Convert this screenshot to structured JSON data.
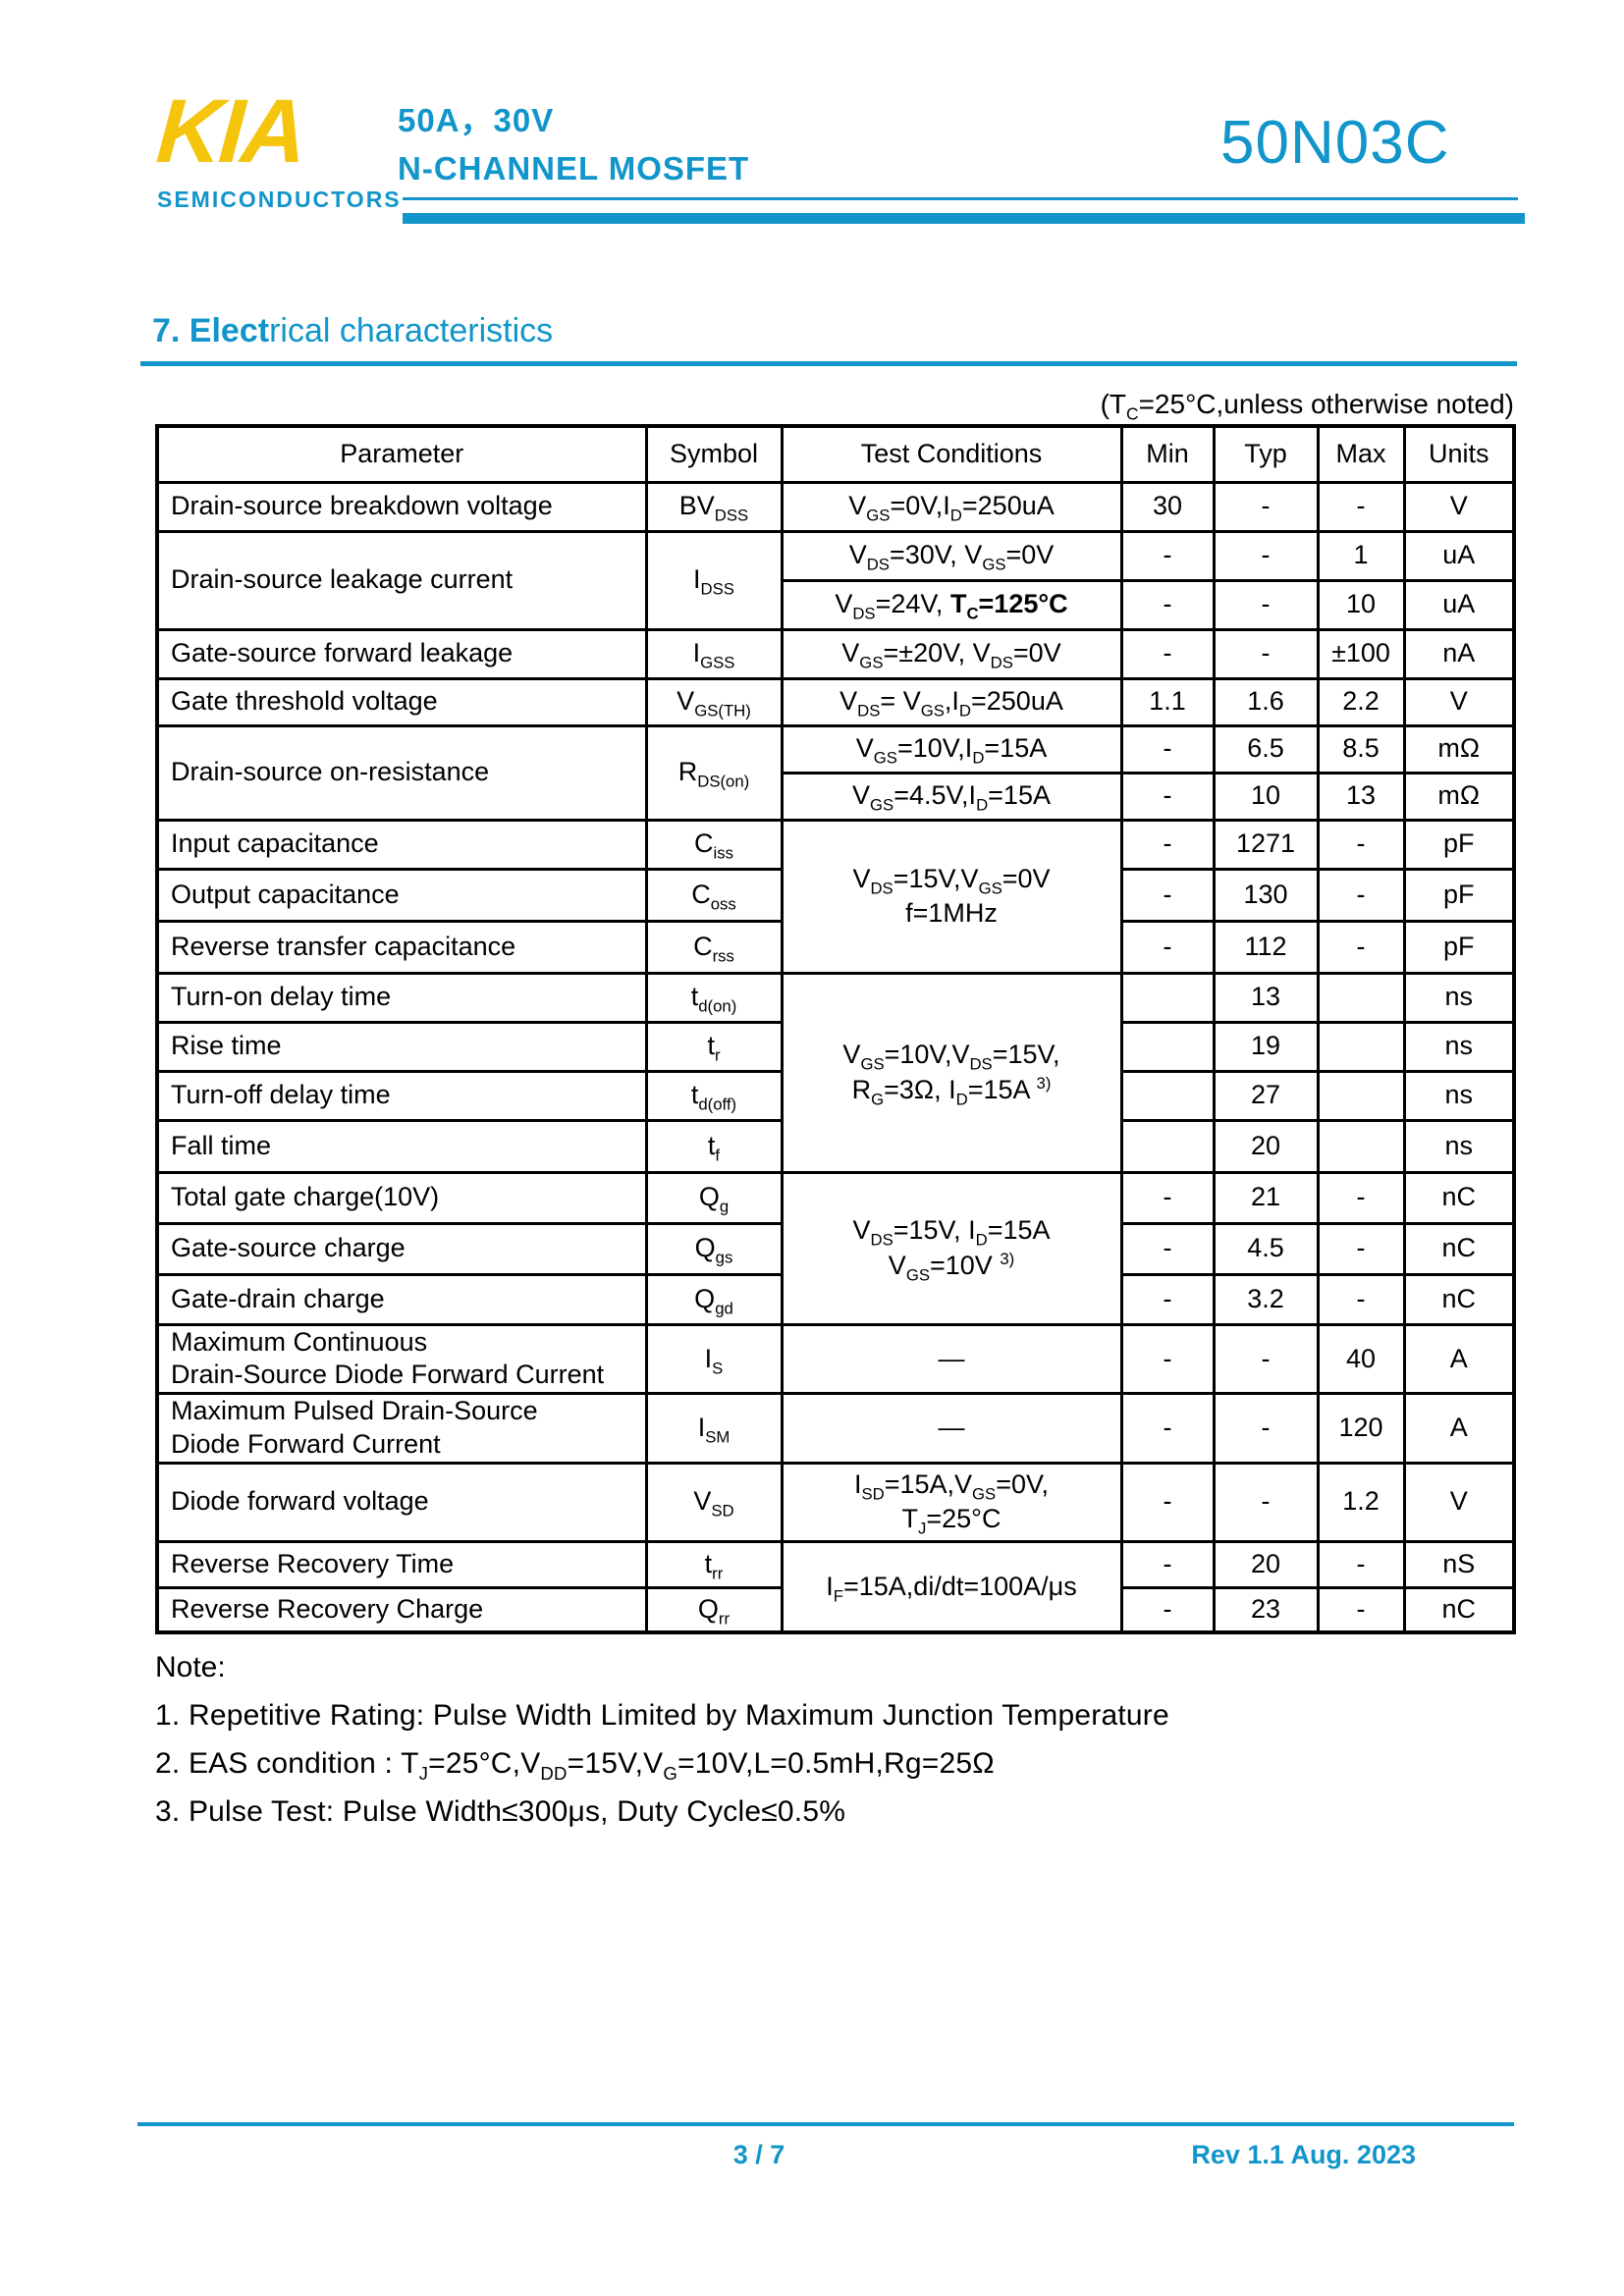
{
  "colors": {
    "accent_blue": "#1195ca",
    "logo_yellow": "#f5c40c",
    "text_black": "#000000"
  },
  "header": {
    "logo": "KIA",
    "logo_caption": "SEMICONDUCTORS",
    "rating_line": "50A，30V",
    "type_line": "N-CHANNEL MOSFET",
    "part_number": "50N03C"
  },
  "section": {
    "title_bold": "7. Elect",
    "title_rest": "rical characteristics",
    "condition_note": "(T~C~=25°C,unless otherwise noted)"
  },
  "table": {
    "headers": [
      "Parameter",
      "Symbol",
      "Test Conditions",
      "Min",
      "Typ",
      "Max",
      "Units"
    ],
    "rows": [
      {
        "param": "Drain-source breakdown voltage",
        "symbol": "BV~DSS~",
        "cond": "V~GS~=0V,I~D~=250uA",
        "min": "30",
        "typ": "-",
        "max": "-",
        "units": "V"
      },
      {
        "param": "Drain-source leakage current",
        "symbol": "I~DSS~",
        "cond": "V~DS~=30V, V~GS~=0V",
        "min": "-",
        "typ": "-",
        "max": "1",
        "units": "uA"
      },
      {
        "cond": "V~DS~=24V, *T~C~=125°C*",
        "min": "-",
        "typ": "-",
        "max": "10",
        "units": "uA"
      },
      {
        "param": "Gate-source forward leakage",
        "symbol": "I~GSS~",
        "cond": "V~GS~=±20V, V~DS~=0V",
        "min": "-",
        "typ": "-",
        "max": "±100",
        "units": "nA"
      },
      {
        "param": "Gate threshold voltage",
        "symbol": "V~GS(TH)~",
        "cond": "V~DS~= V~GS~,I~D~=250uA",
        "min": "1.1",
        "typ": "1.6",
        "max": "2.2",
        "units": "V"
      },
      {
        "param": "Drain-source on-resistance",
        "symbol": "R~DS(on)~",
        "cond": "V~GS~=10V,I~D~=15A",
        "min": "-",
        "typ": "6.5",
        "max": "8.5",
        "units": "mΩ"
      },
      {
        "cond": "V~GS~=4.5V,I~D~=15A",
        "min": "-",
        "typ": "10",
        "max": "13",
        "units": "mΩ"
      },
      {
        "param": "Input capacitance",
        "symbol": "C~iss~",
        "cond": "V~DS~=15V,V~GS~=0V\nf=1MHz",
        "min": "-",
        "typ": "1271",
        "max": "-",
        "units": "pF"
      },
      {
        "param": "Output capacitance",
        "symbol": "C~oss~",
        "min": "-",
        "typ": "130",
        "max": "-",
        "units": "pF"
      },
      {
        "param": "Reverse transfer capacitance",
        "symbol": "C~rss~",
        "min": "-",
        "typ": "112",
        "max": "-",
        "units": "pF"
      },
      {
        "param": "Turn-on delay time",
        "symbol": "t~d(on)~",
        "cond": "V~GS~=10V,V~DS~=15V,\nR~G~=3Ω, I~D~=15A ^3)^",
        "min": "",
        "typ": "13",
        "max": "",
        "units": "ns"
      },
      {
        "param": "Rise time",
        "symbol": "t~r~",
        "min": "",
        "typ": "19",
        "max": "",
        "units": "ns"
      },
      {
        "param": "Turn-off delay time",
        "symbol": "t~d(off)~",
        "min": "",
        "typ": "27",
        "max": "",
        "units": "ns"
      },
      {
        "param": "Fall time",
        "symbol": "t~f~",
        "min": "",
        "typ": "20",
        "max": "",
        "units": "ns"
      },
      {
        "param": "Total gate charge(10V)",
        "symbol": "Q~g~",
        "cond": "V~DS~=15V, I~D~=15A\nV~GS~=10V ^3)^",
        "min": "-",
        "typ": "21",
        "max": "-",
        "units": "nC"
      },
      {
        "param": "Gate-source charge",
        "symbol": "Q~gs~",
        "min": "-",
        "typ": "4.5",
        "max": "-",
        "units": "nC"
      },
      {
        "param": "Gate-drain charge",
        "symbol": "Q~gd~",
        "min": "-",
        "typ": "3.2",
        "max": "-",
        "units": "nC"
      },
      {
        "param": "Maximum Continuous\nDrain-Source Diode Forward Current",
        "symbol": "I~S~",
        "cond": "—",
        "min": "-",
        "typ": "-",
        "max": "40",
        "units": "A"
      },
      {
        "param": "Maximum Pulsed Drain-Source\nDiode Forward Current",
        "symbol": "I~SM~",
        "cond": "—",
        "min": "-",
        "typ": "-",
        "max": "120",
        "units": "A"
      },
      {
        "param": "Diode forward voltage",
        "symbol": "V~SD~",
        "cond": "I~SD~=15A,V~GS~=0V,\nT~J~=25°C",
        "min": "-",
        "typ": "-",
        "max": "1.2",
        "units": "V"
      },
      {
        "param": "Reverse Recovery Time",
        "symbol": "t~rr~",
        "cond": "I~F~=15A,di/dt=100A/μs",
        "min": "-",
        "typ": "20",
        "max": "-",
        "units": "nS"
      },
      {
        "param": "Reverse Recovery Charge",
        "symbol": "Q~rr~",
        "min": "-",
        "typ": "23",
        "max": "-",
        "units": "nC"
      }
    ]
  },
  "notes": {
    "label": "Note:",
    "items": [
      "1. Repetitive Rating: Pulse Width Limited by Maximum Junction Temperature",
      "2. EAS condition : T~J~=25°C,V~DD~=15V,V~G~=10V,L=0.5mH,Rg=25Ω",
      "3. Pulse Test: Pulse Width≤300μs, Duty Cycle≤0.5%"
    ]
  },
  "footer": {
    "page_number": "3 / 7",
    "revision": "Rev 1.1 Aug. 2023"
  }
}
